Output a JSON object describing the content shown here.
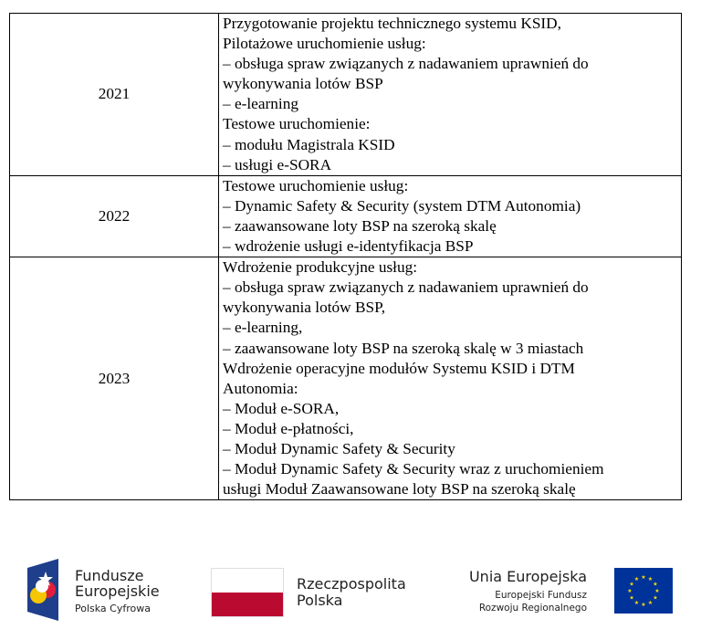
{
  "table": {
    "rows": [
      {
        "year": "2021",
        "lines": [
          "Przygotowanie projektu technicznego systemu KSID,",
          "Pilotażowe uruchomienie usług:",
          "– obsługa spraw związanych z nadawaniem uprawnień do",
          "wykonywania lotów BSP",
          "– e-learning",
          "Testowe uruchomienie:",
          "– modułu Magistrala KSID",
          "– usługi e-SORA"
        ]
      },
      {
        "year": "2022",
        "lines": [
          "Testowe uruchomienie usług:",
          "– Dynamic Safety & Security (system DTM Autonomia)",
          "– zaawansowane loty BSP na szeroką skalę",
          "– wdrożenie usługi e-identyfikacja BSP"
        ]
      },
      {
        "year": "2023",
        "lines": [
          "Wdrożenie produkcyjne usług:",
          "– obsługa spraw związanych z nadawaniem uprawnień do",
          "wykonywania lotów BSP,",
          "– e-learning,",
          "– zaawansowane loty BSP na szeroką skalę w 3 miastach",
          "Wdrożenie operacyjne modułów Systemu KSID i DTM",
          "Autonomia:",
          "– Moduł e-SORA,",
          "– Moduł e-płatności,",
          "– Moduł Dynamic Safety & Security",
          "– Moduł Dynamic Safety & Security wraz z uruchomieniem",
          "usługi Moduł Zaawansowane loty BSP na szeroką skalę"
        ]
      }
    ]
  },
  "footer": {
    "fe_line1": "Fundusze",
    "fe_line2": "Europejskie",
    "fe_sub": "Polska Cyfrowa",
    "rp_line1": "Rzeczpospolita",
    "rp_line2": "Polska",
    "ue_title": "Unia Europejska",
    "ue_sub1": "Europejski Fundusz",
    "ue_sub2": "Rozwoju Regionalnego",
    "colors": {
      "pl_red": "#bb0a30",
      "eu_blue": "#003399",
      "eu_star": "#ffdd00"
    }
  }
}
